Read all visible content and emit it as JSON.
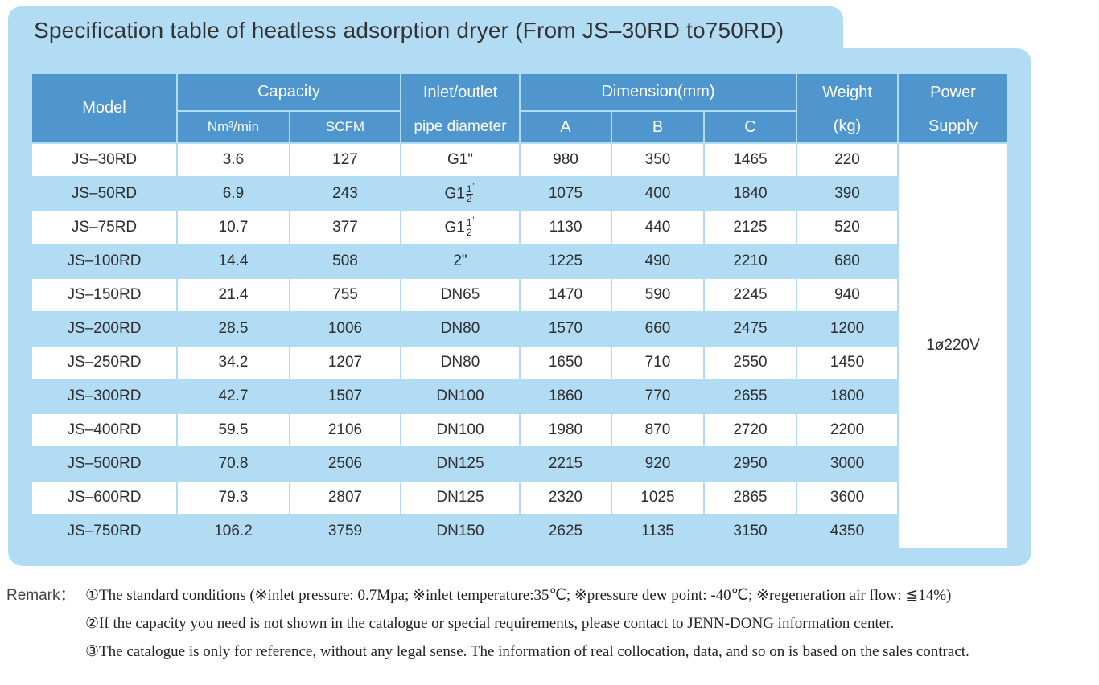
{
  "title": "Specification table of heatless adsorption dryer (From JS–30RD to750RD)",
  "headers": {
    "model": "Model",
    "capacity": "Capacity",
    "nm3": "Nm³/min",
    "scfm": "SCFM",
    "inlet_line1": "Inlet/outlet",
    "inlet_line2": "pipe diameter",
    "dimension": "Dimension(mm)",
    "a": "A",
    "b": "B",
    "c": "C",
    "weight_line1": "Weight",
    "weight_line2": "(kg)",
    "power_line1": "Power",
    "power_line2": "Supply"
  },
  "power_supply": "1ø220V",
  "rows": [
    {
      "model": "JS–30RD",
      "nm3": "3.6",
      "scfm": "127",
      "pipe": "G1\"",
      "a": "980",
      "b": "350",
      "c": "1465",
      "weight": "220"
    },
    {
      "model": "JS–50RD",
      "nm3": "6.9",
      "scfm": "243",
      "pipe_base": "G1",
      "pipe_num": "1",
      "pipe_den": "2",
      "pipe_mark": "\"",
      "a": "1075",
      "b": "400",
      "c": "1840",
      "weight": "390"
    },
    {
      "model": "JS–75RD",
      "nm3": "10.7",
      "scfm": "377",
      "pipe_base": "G1",
      "pipe_num": "1",
      "pipe_den": "2",
      "pipe_mark": "\"",
      "a": "1130",
      "b": "440",
      "c": "2125",
      "weight": "520"
    },
    {
      "model": "JS–100RD",
      "nm3": "14.4",
      "scfm": "508",
      "pipe": "2\"",
      "a": "1225",
      "b": "490",
      "c": "2210",
      "weight": "680"
    },
    {
      "model": "JS–150RD",
      "nm3": "21.4",
      "scfm": "755",
      "pipe": "DN65",
      "a": "1470",
      "b": "590",
      "c": "2245",
      "weight": "940"
    },
    {
      "model": "JS–200RD",
      "nm3": "28.5",
      "scfm": "1006",
      "pipe": "DN80",
      "a": "1570",
      "b": "660",
      "c": "2475",
      "weight": "1200"
    },
    {
      "model": "JS–250RD",
      "nm3": "34.2",
      "scfm": "1207",
      "pipe": "DN80",
      "a": "1650",
      "b": "710",
      "c": "2550",
      "weight": "1450"
    },
    {
      "model": "JS–300RD",
      "nm3": "42.7",
      "scfm": "1507",
      "pipe": "DN100",
      "a": "1860",
      "b": "770",
      "c": "2655",
      "weight": "1800"
    },
    {
      "model": "JS–400RD",
      "nm3": "59.5",
      "scfm": "2106",
      "pipe": "DN100",
      "a": "1980",
      "b": "870",
      "c": "2720",
      "weight": "2200"
    },
    {
      "model": "JS–500RD",
      "nm3": "70.8",
      "scfm": "2506",
      "pipe": "DN125",
      "a": "2215",
      "b": "920",
      "c": "2950",
      "weight": "3000"
    },
    {
      "model": "JS–600RD",
      "nm3": "79.3",
      "scfm": "2807",
      "pipe": "DN125",
      "a": "2320",
      "b": "1025",
      "c": "2865",
      "weight": "3600"
    },
    {
      "model": "JS–750RD",
      "nm3": "106.2",
      "scfm": "3759",
      "pipe": "DN150",
      "a": "2625",
      "b": "1135",
      "c": "3150",
      "weight": "4350"
    }
  ],
  "remarks": {
    "label": "Remark：",
    "r1": "①The standard conditions (※inlet pressure: 0.7Mpa; ※inlet temperature:35℃; ※pressure dew point: -40℃; ※regeneration air flow: ≦14%)",
    "r2": "②If the capacity you need is not shown in the catalogue or special requirements, please contact to JENN-DONG information center.",
    "r3": "③The catalogue is only for reference, without any legal sense. The information of real collocation, data, and so on is based on the sales contract."
  }
}
